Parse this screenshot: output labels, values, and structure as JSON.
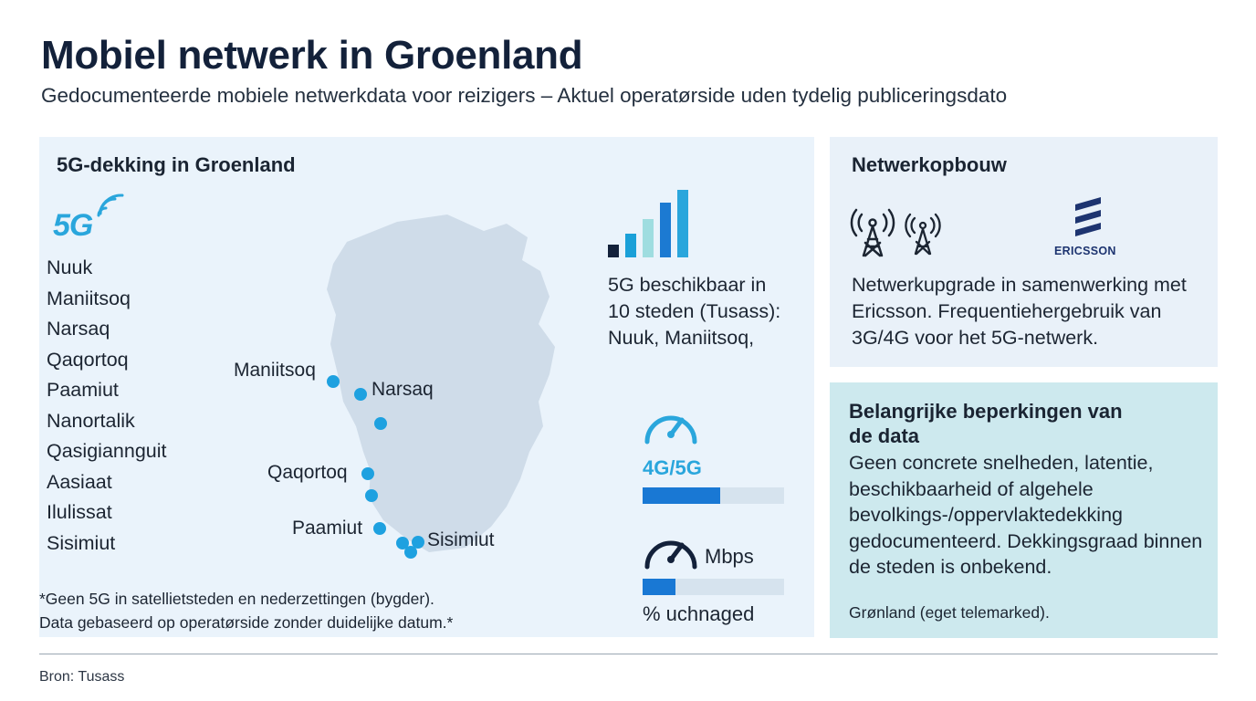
{
  "header": {
    "title": "Mobiel netwerk in Groenland",
    "subtitle": "Gedocumenteerde mobiele netwerkdata voor reizigers – Aktuel operatørside uden tydelig publiceringsdato"
  },
  "coverage": {
    "heading": "5G-dekking in Groenland",
    "badge": "5G",
    "cities": [
      "Nuuk",
      "Maniitsoq",
      "Narsaq",
      "Qaqortoq",
      "Paamiut",
      "Nanortalik",
      "Qasigiannguit",
      "Aasiaat",
      "Ilulissat",
      "Sisimiut"
    ],
    "map_labels": [
      "Maniitsoq",
      "Narsaq",
      "Qaqortoq",
      "Paamiut",
      "Sisimiut"
    ],
    "footnote": [
      "*Geen 5G in satellietsteden en nederzettingen (bygder).",
      "Data gebaseerd op operatørside zonder duidelijke datum.*"
    ]
  },
  "stats": {
    "availability_lines": [
      "5G beschikbaar in",
      "10 steden (Tusass):",
      "Nuuk, Maniitsoq,"
    ],
    "tech_label": "4G/5G",
    "tech_fill": 0.55,
    "speed_unit": "Mbps",
    "speed_fill": 0.23,
    "unchanged_label": "% uchnaged",
    "signal_colors": [
      "#13213a",
      "#1aa0d8",
      "#9fdde0",
      "#1c7ad2",
      "#2aa6dc"
    ]
  },
  "network": {
    "heading": "Netwerkopbouw",
    "brand": "ERICSSON",
    "text_lines": [
      "Netwerkupgrade in samenwerking met",
      "Ericsson. Frequentiehergebruik van",
      "3G/4G voor het 5G-netwerk."
    ],
    "icons": [
      "antenna-tower-icon",
      "antenna-tower-icon",
      "ericsson-logo"
    ]
  },
  "limitations": {
    "title_lines": [
      "Belangrijke beperkingen van",
      "de data"
    ],
    "text_lines": [
      "Geen concrete snelheden, latentie,",
      "beschikbaarheid of algehele",
      "bevolkings-/oppervlaktedekking",
      "gedocumenteerd. Dekkingsgraad binnen",
      "de steden is onbekend."
    ],
    "footer": "Grønland (eget telemarked)."
  },
  "source": "Bron: Tusass",
  "colors": {
    "accent": "#2aa6dc",
    "bar": "#1978d4",
    "panel_left": "#eaf3fb",
    "panel_limits": "#cde9ee"
  }
}
